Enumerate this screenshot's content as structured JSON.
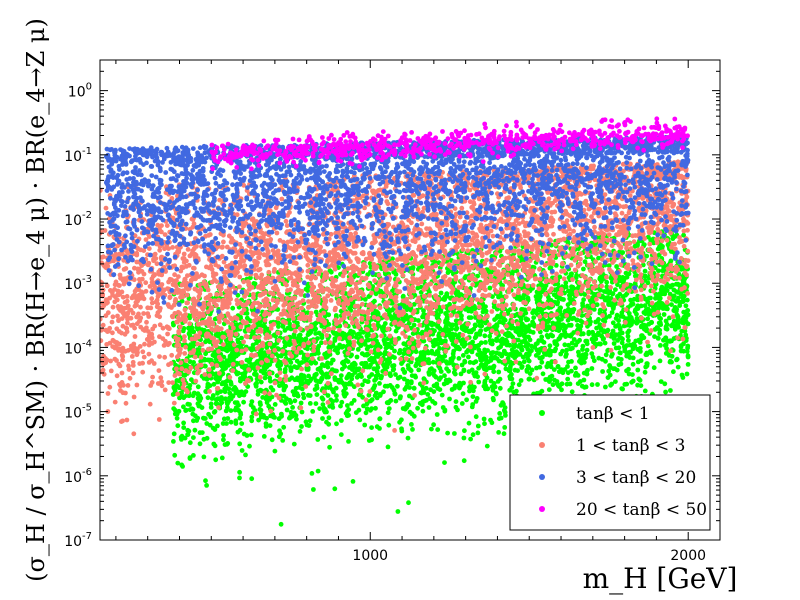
{
  "chart_data": {
    "type": "scatter",
    "x_scale": "linear",
    "y_scale": "log",
    "xlim": [
      150,
      2100
    ],
    "ylim": [
      1e-07,
      3
    ],
    "xlabel": "m_H  [GeV]",
    "ylabel": "(σ_H / σ_H^SM) · BR(H→e_4 μ) · BR(e_4→Z μ)",
    "x_ticks": [
      {
        "value": 1000,
        "label": "1000"
      },
      {
        "value": 2000,
        "label": "2000"
      }
    ],
    "y_ticks": [
      {
        "value": 1e-07,
        "base": "10",
        "exp": "-7"
      },
      {
        "value": 1e-06,
        "base": "10",
        "exp": "-6"
      },
      {
        "value": 1e-05,
        "base": "10",
        "exp": "-5"
      },
      {
        "value": 0.0001,
        "base": "10",
        "exp": "-4"
      },
      {
        "value": 0.001,
        "base": "10",
        "exp": "-3"
      },
      {
        "value": 0.01,
        "base": "10",
        "exp": "-2"
      },
      {
        "value": 0.1,
        "base": "10",
        "exp": "-1"
      },
      {
        "value": 1,
        "base": "10",
        "exp": "0"
      }
    ],
    "legend_position": "lower-right",
    "series": [
      {
        "name": "tanβ < 1",
        "color": "#00ff00",
        "x_range": [
          380,
          2000
        ],
        "log10_y_center_start": -4.3,
        "log10_y_center_end": -3.3,
        "log10_y_spread": 1.25,
        "log10_y_max_start": -3.0,
        "log10_y_max_end": -2.1
      },
      {
        "name": "1 < tanβ < 3",
        "color": "#fa8072",
        "x_range": [
          150,
          2000
        ],
        "log10_y_center_start": -3.3,
        "log10_y_center_end": -1.8,
        "log10_y_spread": 1.4,
        "log10_y_max_start": -1.5,
        "log10_y_max_end": -1.1
      },
      {
        "name": "3 < tanβ < 20",
        "color": "#4169e1",
        "x_range": [
          170,
          2000
        ],
        "log10_y_center_start": -1.6,
        "log10_y_center_end": -1.05,
        "log10_y_spread": 1.2,
        "log10_y_max_start": -0.9,
        "log10_y_max_end": -0.7
      },
      {
        "name": "20 < tanβ < 50",
        "color": "#ff00ff",
        "x_range": [
          500,
          2000
        ],
        "log10_y_center_start": -1.0,
        "log10_y_center_end": -0.65,
        "log10_y_spread": 0.18,
        "log10_y_max_start": -0.8,
        "log10_y_max_end": -0.25
      }
    ]
  }
}
